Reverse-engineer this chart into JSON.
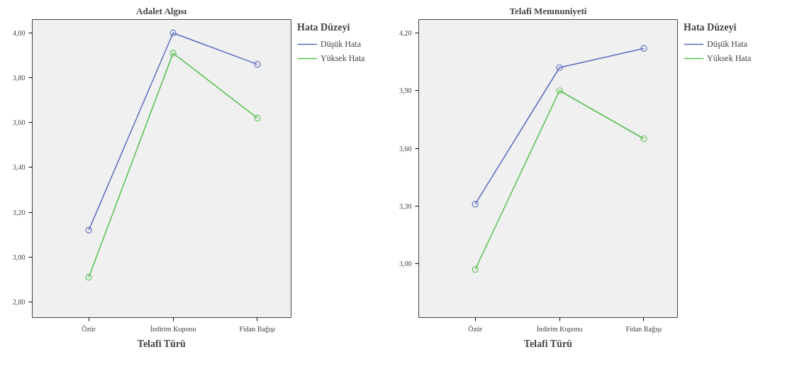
{
  "chart_data": [
    {
      "type": "line",
      "title": "Adalet Algısı",
      "xlabel": "Telafi Türü",
      "legend_title": "Hata Düzeyi",
      "categories": [
        "Özür",
        "İndirim Kuponu",
        "Fidan Bağışı"
      ],
      "series": [
        {
          "name": "Düşük Hata",
          "color": "#5b6cbf",
          "values": [
            3.12,
            4.0,
            3.86
          ]
        },
        {
          "name": "Yüksek Hata",
          "color": "#55c04f",
          "values": [
            2.91,
            3.91,
            3.62
          ]
        }
      ],
      "ylim": [
        2.73,
        4.06
      ],
      "yticks": [
        {
          "value": 2.8,
          "label": "2,80"
        },
        {
          "value": 3.0,
          "label": "3,00"
        },
        {
          "value": 3.2,
          "label": "3,20"
        },
        {
          "value": 3.4,
          "label": "3,40"
        },
        {
          "value": 3.6,
          "label": "3,60"
        },
        {
          "value": 3.8,
          "label": "3,80"
        },
        {
          "value": 4.0,
          "label": "4,00"
        }
      ],
      "grid": false,
      "legend": "top right",
      "marker": "circle",
      "line_style": "solid"
    },
    {
      "type": "line",
      "title": "Telafi Memnuniyeti",
      "xlabel": "Telafi Türü",
      "legend_title": "Hata Düzeyi",
      "categories": [
        "Özür",
        "İndirim Kuponu",
        "Fidan Bağışı"
      ],
      "series": [
        {
          "name": "Düşük Hata",
          "color": "#5b6cbf",
          "values": [
            3.31,
            4.02,
            4.12
          ]
        },
        {
          "name": "Yüksek Hata",
          "color": "#55c04f",
          "values": [
            2.97,
            3.9,
            3.65
          ]
        }
      ],
      "ylim": [
        2.72,
        4.27
      ],
      "yticks": [
        {
          "value": 3.0,
          "label": "3,00"
        },
        {
          "value": 3.3,
          "label": "3,30"
        },
        {
          "value": 3.6,
          "label": "3,60"
        },
        {
          "value": 3.9,
          "label": "3,90"
        },
        {
          "value": 4.2,
          "label": "4,20"
        }
      ],
      "grid": false,
      "legend": "top right",
      "marker": "circle",
      "line_style": "solid"
    }
  ]
}
